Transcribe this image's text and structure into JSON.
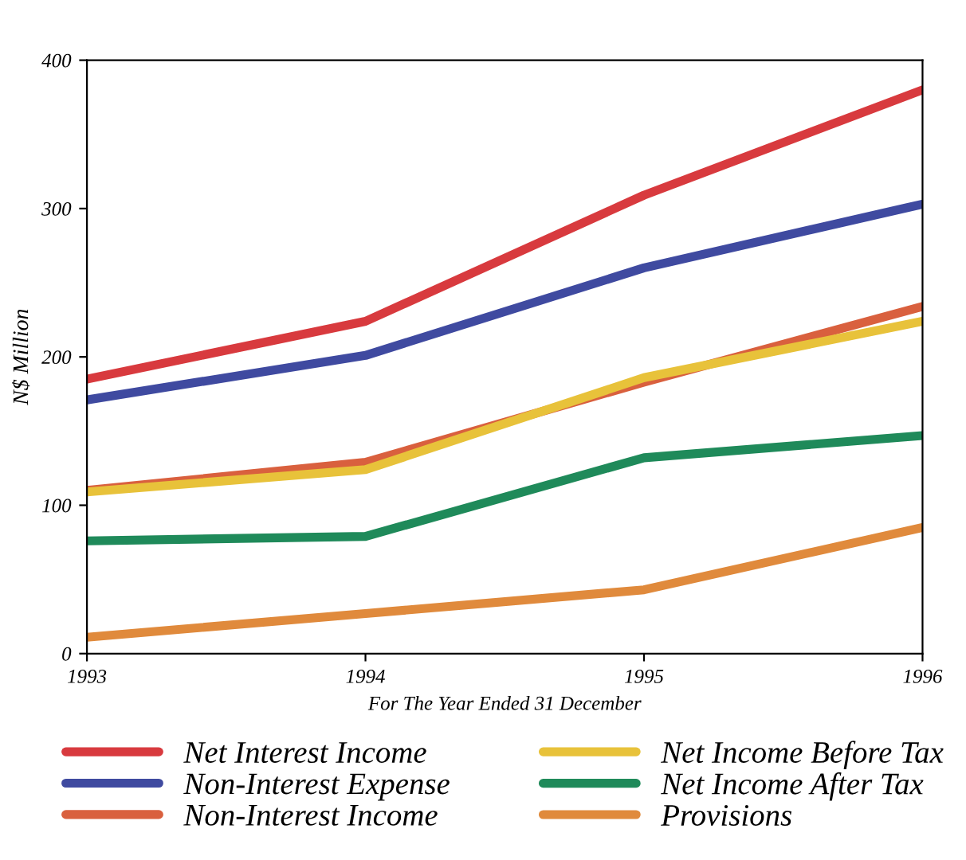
{
  "chart_data": {
    "type": "line",
    "xlabel": "For The Year Ended 31 December",
    "ylabel": "N$ Million",
    "x": [
      1993,
      1994,
      1995,
      1996
    ],
    "xlim": [
      1993,
      1996
    ],
    "xticks": [
      1993,
      1994,
      1995,
      1996
    ],
    "ylim": [
      0,
      400
    ],
    "yticks": [
      0,
      100,
      200,
      300,
      400
    ],
    "grid": false,
    "legend": "bottom",
    "marker": "none",
    "line_style": "solid",
    "series": [
      {
        "name": "Net Interest Income",
        "color": "#d83a3e",
        "values": [
          185,
          224,
          309,
          380
        ]
      },
      {
        "name": "Non-Interest Expense",
        "color": "#3f4aa0",
        "values": [
          171,
          201,
          260,
          303
        ]
      },
      {
        "name": "Non-Interest Income",
        "color": "#d9603e",
        "values": [
          110,
          129,
          183,
          234
        ]
      },
      {
        "name": "Net Income Before Tax",
        "color": "#e8c23a",
        "values": [
          109,
          124,
          186,
          224
        ]
      },
      {
        "name": "Net Income After Tax",
        "color": "#1f8a5a",
        "values": [
          76,
          79,
          132,
          147
        ]
      },
      {
        "name": "Provisions",
        "color": "#e08a3c",
        "values": [
          11,
          27,
          43,
          85
        ]
      }
    ]
  }
}
